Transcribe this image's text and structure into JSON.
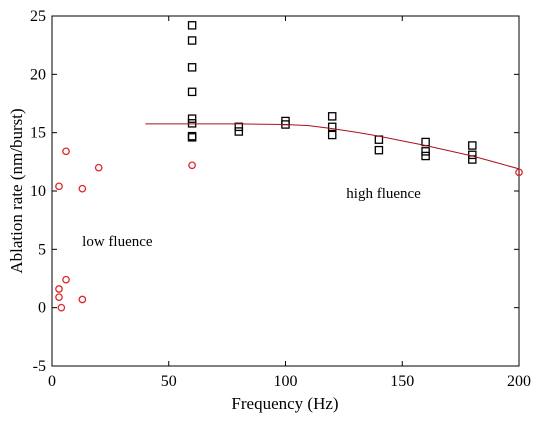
{
  "chart_data": {
    "type": "scatter",
    "title": "",
    "xlabel": "Frequency (Hz)",
    "ylabel": "Ablation rate (nm/burst)",
    "xlim": [
      0,
      200
    ],
    "ylim": [
      -5,
      25
    ],
    "xticks": [
      0,
      50,
      100,
      150,
      200
    ],
    "yticks": [
      -5,
      0,
      5,
      10,
      15,
      20,
      25
    ],
    "grid": false,
    "series": [
      {
        "marker": "circle",
        "color": "#e0242b",
        "points": [
          [
            3,
            10.4
          ],
          [
            3,
            1.6
          ],
          [
            3,
            0.9
          ],
          [
            4,
            0.0
          ],
          [
            6,
            13.4
          ],
          [
            6,
            2.4
          ],
          [
            13,
            10.2
          ],
          [
            13,
            0.7
          ],
          [
            20,
            12.0
          ],
          [
            60,
            12.2
          ],
          [
            200,
            11.6
          ]
        ]
      },
      {
        "marker": "square",
        "color": "#000000",
        "points": [
          [
            60,
            24.2
          ],
          [
            60,
            22.9
          ],
          [
            60,
            20.6
          ],
          [
            60,
            18.5
          ],
          [
            60,
            16.2
          ],
          [
            60,
            15.8
          ],
          [
            60,
            14.7
          ],
          [
            60,
            14.6
          ],
          [
            80,
            15.5
          ],
          [
            80,
            15.1
          ],
          [
            100,
            16.0
          ],
          [
            100,
            15.7
          ],
          [
            120,
            16.4
          ],
          [
            120,
            15.5
          ],
          [
            120,
            14.8
          ],
          [
            140,
            14.4
          ],
          [
            140,
            13.5
          ],
          [
            160,
            14.2
          ],
          [
            160,
            13.4
          ],
          [
            160,
            13.0
          ],
          [
            180,
            13.9
          ],
          [
            180,
            13.1
          ],
          [
            180,
            12.7
          ]
        ]
      },
      {
        "type": "line",
        "color": "#a3141e",
        "x": [
          40,
          60,
          80,
          100,
          110,
          120,
          130,
          140,
          150,
          160,
          170,
          180,
          190,
          200
        ],
        "y": [
          15.75,
          15.75,
          15.75,
          15.7,
          15.6,
          15.35,
          15.05,
          14.7,
          14.3,
          13.9,
          13.45,
          13.0,
          12.45,
          11.9
        ]
      }
    ],
    "annotations": [
      {
        "text": "high fluence",
        "x": 142,
        "y": 9.4
      },
      {
        "text": "low fluence",
        "x": 28,
        "y": 5.3
      }
    ]
  }
}
